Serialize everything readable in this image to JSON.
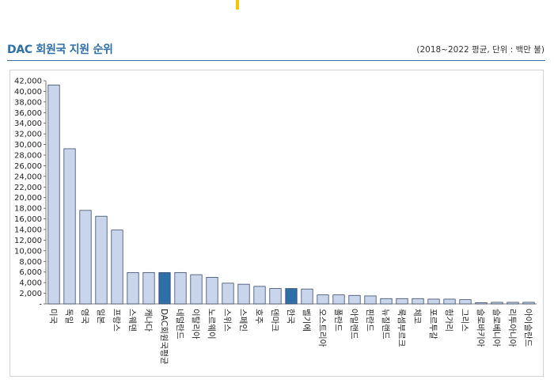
{
  "header": {
    "title": "DAC 회원국 지원 순위",
    "unit_note": "(2018~2022 평균, 단위 : 백만 불)"
  },
  "colors": {
    "title": "#2e6fa7",
    "bar_default": "#c9d5ea",
    "bar_highlight": "#2e6fa7",
    "bar_stroke": "#3a4a6a",
    "accent": "#f5c400"
  },
  "chart_data": {
    "type": "bar",
    "title": "DAC 회원국 지원 순위",
    "xlabel": "",
    "ylabel": "",
    "ylim": [
      0,
      42000
    ],
    "yticks": [
      0,
      2000,
      4000,
      6000,
      8000,
      10000,
      12000,
      14000,
      16000,
      18000,
      20000,
      22000,
      24000,
      26000,
      28000,
      30000,
      32000,
      34000,
      36000,
      38000,
      40000,
      42000
    ],
    "ytick_labels": [
      "-",
      "2,000",
      "4,000",
      "6,000",
      "8,000",
      "10,000",
      "12,000",
      "14,000",
      "16,000",
      "18,000",
      "20,000",
      "22,000",
      "24,000",
      "26,000",
      "28,000",
      "30,000",
      "32,000",
      "34,000",
      "36,000",
      "38,000",
      "40,000",
      "42,000"
    ],
    "grid": false,
    "categories": [
      "미국",
      "독일",
      "영국",
      "일본",
      "프랑스",
      "스웨덴",
      "캐나다",
      "DAC회원국평균",
      "네덜란드",
      "이탈리아",
      "노르웨이",
      "스위스",
      "스페인",
      "호주",
      "덴마크",
      "한국",
      "벨기에",
      "오스트리아",
      "폴란드",
      "아일랜드",
      "핀란드",
      "뉴질랜드",
      "룩셈부르크",
      "체코",
      "포르투갈",
      "헝가리",
      "그리스",
      "슬로바키아",
      "슬로베니아",
      "리투아니아",
      "아이슬란드"
    ],
    "values": [
      41200,
      29200,
      17600,
      16500,
      13900,
      5900,
      5900,
      5900,
      5900,
      5500,
      5000,
      3900,
      3700,
      3300,
      2900,
      2900,
      2800,
      1700,
      1700,
      1600,
      1500,
      1000,
      1000,
      1000,
      900,
      900,
      800,
      250,
      300,
      300,
      300
    ],
    "highlighted": [
      "DAC회원국평균",
      "한국"
    ]
  }
}
